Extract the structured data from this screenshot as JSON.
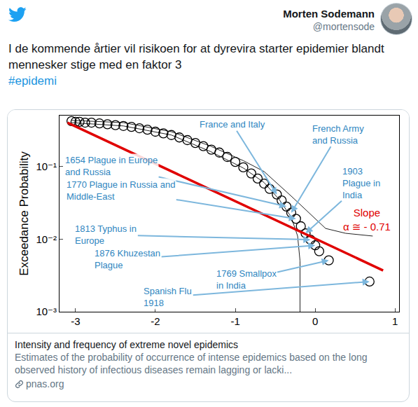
{
  "tweet": {
    "name": "Morten Sodemann",
    "handle": "@mortensode",
    "text": "I de kommende årtier vil risikoen for at dyrevira starter epidemier blandt mennesker stige med en faktor 3",
    "hashtag": "#epidemi"
  },
  "card": {
    "title": "Intensity and frequency of extreme novel epidemics",
    "description": "Estimates of the probability of occurrence of intense epidemics based on the long observed history of infectious diseases remain lagging or lacki...",
    "domain": "pnas.org"
  },
  "chart_data": {
    "type": "scatter",
    "y_label": "Exceedance Probability",
    "log": "y",
    "grid": false,
    "xlim": [
      -3.2,
      1.05
    ],
    "ylim": [
      0.001,
      0.5
    ],
    "xticks": [
      -3,
      -2,
      -1,
      0,
      1
    ],
    "yticks": [
      {
        "value": 0.001,
        "label": "10⁻³"
      },
      {
        "value": 0.01,
        "label": "10⁻²"
      },
      {
        "value": 0.1,
        "label": "10⁻¹"
      }
    ],
    "series": [
      {
        "type": "line",
        "color": "#222222",
        "x": [
          -3.05,
          -2.4,
          -1.8,
          -1.31,
          -0.9,
          -0.64,
          -0.45,
          -0.3,
          -0.22,
          -0.19,
          -0.19
        ],
        "values": [
          0.4,
          0.36,
          0.27,
          0.16,
          0.095,
          0.06,
          0.035,
          0.02,
          0.011,
          0.005,
          0.001
        ]
      },
      {
        "type": "line",
        "color": "#222222",
        "x": [
          -3.05,
          -2.4,
          -1.8,
          -1.31,
          -0.9,
          -0.64,
          -0.3,
          -0.04,
          0.13,
          0.38,
          0.72
        ],
        "values": [
          0.43,
          0.4,
          0.3,
          0.19,
          0.12,
          0.085,
          0.039,
          0.021,
          0.014,
          0.012,
          0.011
        ]
      },
      {
        "type": "scatter",
        "marker": "circle-open",
        "color": "#000000",
        "x": [
          -3.05,
          -3.0,
          -2.95,
          -2.88,
          -2.8,
          -2.7,
          -2.6,
          -2.5,
          -2.4,
          -2.3,
          -2.2,
          -2.1,
          -2.0,
          -1.9,
          -1.8,
          -1.7,
          -1.6,
          -1.5,
          -1.4,
          -1.3,
          -1.2,
          -1.1,
          -1.0,
          -0.9,
          -0.8,
          -0.72,
          -0.64,
          -0.57,
          -0.48,
          -0.42,
          -0.36,
          -0.3,
          -0.24,
          -0.18,
          -0.12,
          -0.06,
          0.0,
          0.05,
          0.17,
          0.68
        ],
        "values": [
          0.42,
          0.41,
          0.41,
          0.4,
          0.4,
          0.39,
          0.38,
          0.37,
          0.36,
          0.35,
          0.335,
          0.32,
          0.3,
          0.285,
          0.27,
          0.25,
          0.23,
          0.21,
          0.19,
          0.17,
          0.155,
          0.135,
          0.115,
          0.097,
          0.08,
          0.068,
          0.058,
          0.049,
          0.041,
          0.034,
          0.028,
          0.023,
          0.019,
          0.015,
          0.012,
          0.0098,
          0.0082,
          0.0068,
          0.0051,
          0.0026
        ]
      },
      {
        "type": "line",
        "color": "#e00000",
        "x": [
          -3.1,
          0.85
        ],
        "values": [
          0.4,
          0.0037
        ]
      }
    ],
    "annotations": [
      {
        "text": "France and Italy",
        "x": -0.48,
        "y": 0.041
      },
      {
        "text": "French Army\nand Russia",
        "x": -0.3,
        "y": 0.023
      },
      {
        "text": "1903\nPlague in\nIndia",
        "x": -0.12,
        "y": 0.012
      },
      {
        "text": "1654 Plague in Europe\nand Russia",
        "x": -0.36,
        "y": 0.028
      },
      {
        "text": "1770 Plague in Russia and\nMiddle-East",
        "x": -0.24,
        "y": 0.019
      },
      {
        "text": "1813 Typhus in\nEurope",
        "x": -0.06,
        "y": 0.0098
      },
      {
        "text": "1876 Khuzestan\nPlague",
        "x": 0.0,
        "y": 0.0082
      },
      {
        "text": "1769 Smallpox\nin India",
        "x": 0.17,
        "y": 0.0051
      },
      {
        "text": "Spanish Flu\n1918",
        "x": 0.68,
        "y": 0.0026
      },
      {
        "text": "Slope\nα ≅ - 0.71",
        "color": "#e00000"
      }
    ]
  }
}
